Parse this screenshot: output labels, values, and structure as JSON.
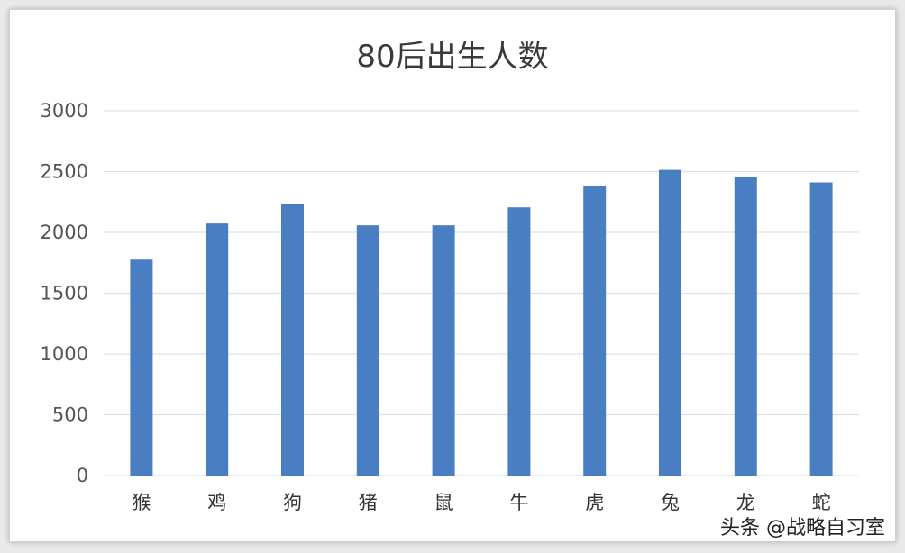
{
  "chart_data": {
    "type": "bar",
    "title": "80后出生人数",
    "xlabel": "",
    "ylabel": "",
    "categories": [
      "猴",
      "鸡",
      "狗",
      "猪",
      "鼠",
      "牛",
      "虎",
      "兔",
      "龙",
      "蛇"
    ],
    "values": [
      1776,
      2073,
      2235,
      2058,
      2058,
      2206,
      2384,
      2514,
      2458,
      2411
    ],
    "ylim": [
      0,
      3000
    ],
    "yticks": [
      0,
      500,
      1000,
      1500,
      2000,
      2500,
      3000
    ],
    "grid": true,
    "colors": {
      "bar": "#4a7ec2"
    }
  },
  "watermark": "头条 @战略自习室"
}
